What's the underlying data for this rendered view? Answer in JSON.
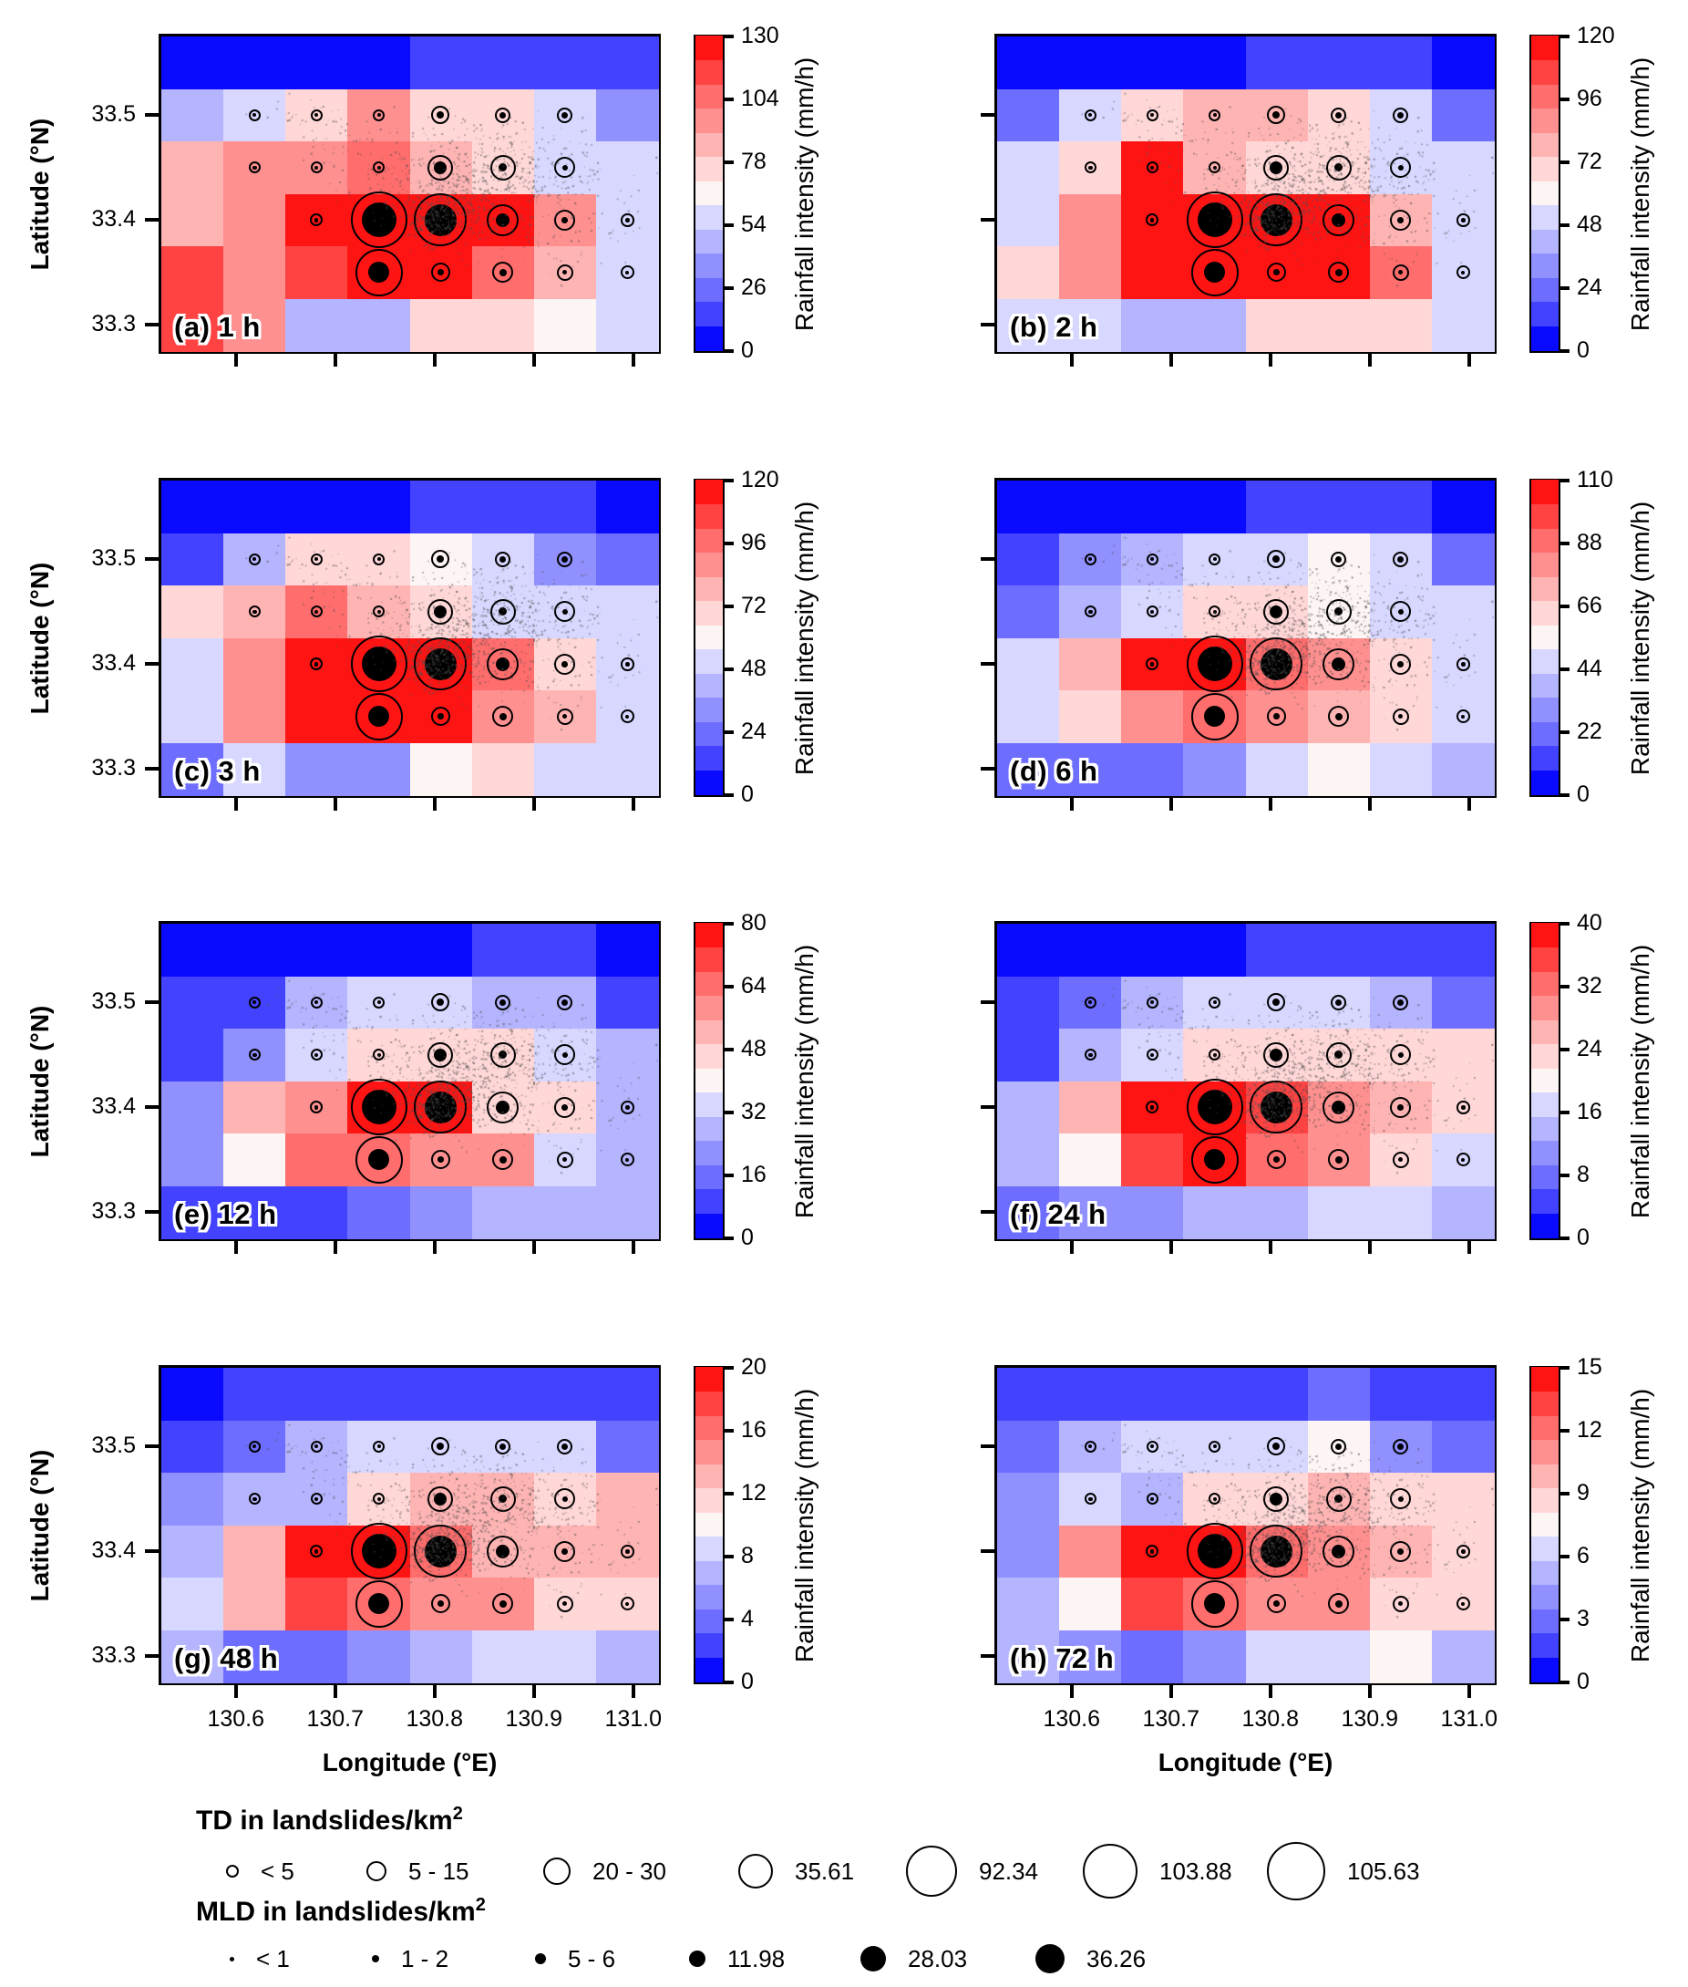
{
  "chart_data": {
    "type": "heatmap",
    "description": "Rainfall intensity heatmaps for 8 durations with landslide density bubble markers (TD open circles, MLD filled dots) and gray landslide scatter points",
    "x": {
      "label": "Longitude (°E)",
      "ticks": [
        "130.6",
        "130.7",
        "130.8",
        "130.9",
        "131.0"
      ],
      "tick_values": [
        130.6,
        130.7,
        130.8,
        130.9,
        131.0
      ],
      "range": [
        130.525,
        131.025
      ]
    },
    "y": {
      "label": "Latitude (°N)",
      "ticks": [
        "33.5",
        "33.4",
        "33.3"
      ],
      "tick_values": [
        33.5,
        33.4,
        33.3
      ],
      "range": [
        33.275,
        33.575
      ]
    },
    "colorbar_label": "Rainfall intensity (mm/h)",
    "palette": [
      "#0a0aff",
      "#4343ff",
      "#6d6dff",
      "#9090ff",
      "#b4b4ff",
      "#d7d7ff",
      "#fdf4f4",
      "#ffd7d7",
      "#ffb4b4",
      "#ff9090",
      "#ff6d6d",
      "#ff4343",
      "#ff1414"
    ],
    "panels": [
      {
        "id": "a",
        "title": "(a) 1 h",
        "vmax": 130,
        "cb_ticks": [
          "0",
          "26",
          "54",
          "78",
          "104",
          "130"
        ],
        "grid": [
          [
            0,
            0,
            0,
            0,
            1,
            1,
            1,
            1
          ],
          [
            4,
            5,
            7,
            9,
            7,
            7,
            5,
            3
          ],
          [
            8,
            9,
            9,
            10,
            8,
            7,
            5,
            5
          ],
          [
            8,
            9,
            12,
            12,
            12,
            12,
            9,
            5
          ],
          [
            11,
            9,
            11,
            12,
            12,
            10,
            8,
            5
          ],
          [
            11,
            9,
            4,
            4,
            7,
            7,
            6,
            5
          ]
        ]
      },
      {
        "id": "b",
        "title": "(b) 2 h",
        "vmax": 120,
        "cb_ticks": [
          "0",
          "24",
          "48",
          "72",
          "96",
          "120"
        ],
        "grid": [
          [
            0,
            0,
            0,
            0,
            1,
            1,
            1,
            0
          ],
          [
            2,
            5,
            7,
            8,
            8,
            7,
            5,
            2
          ],
          [
            5,
            7,
            12,
            8,
            7,
            7,
            5,
            5
          ],
          [
            5,
            9,
            12,
            12,
            12,
            12,
            8,
            5
          ],
          [
            7,
            9,
            12,
            12,
            12,
            12,
            10,
            5
          ],
          [
            5,
            5,
            4,
            4,
            7,
            7,
            7,
            5
          ]
        ]
      },
      {
        "id": "c",
        "title": "(c) 3 h",
        "vmax": 120,
        "cb_ticks": [
          "0",
          "24",
          "48",
          "72",
          "96",
          "120"
        ],
        "grid": [
          [
            0,
            0,
            0,
            0,
            1,
            1,
            1,
            0
          ],
          [
            1,
            4,
            7,
            7,
            6,
            5,
            3,
            2
          ],
          [
            7,
            8,
            10,
            8,
            7,
            5,
            5,
            5
          ],
          [
            5,
            9,
            12,
            12,
            12,
            10,
            7,
            5
          ],
          [
            5,
            9,
            12,
            12,
            12,
            9,
            8,
            5
          ],
          [
            2,
            5,
            3,
            3,
            6,
            7,
            5,
            5
          ]
        ]
      },
      {
        "id": "d",
        "title": "(d) 6 h",
        "vmax": 110,
        "cb_ticks": [
          "0",
          "22",
          "44",
          "66",
          "88",
          "110"
        ],
        "grid": [
          [
            0,
            0,
            0,
            0,
            1,
            1,
            1,
            0
          ],
          [
            1,
            3,
            4,
            5,
            5,
            6,
            5,
            2
          ],
          [
            2,
            4,
            5,
            7,
            7,
            6,
            5,
            5
          ],
          [
            5,
            8,
            12,
            12,
            10,
            9,
            7,
            5
          ],
          [
            5,
            7,
            9,
            10,
            9,
            8,
            7,
            5
          ],
          [
            2,
            2,
            2,
            3,
            5,
            6,
            5,
            4
          ]
        ]
      },
      {
        "id": "e",
        "title": "(e) 12 h",
        "vmax": 80,
        "cb_ticks": [
          "0",
          "16",
          "32",
          "48",
          "64",
          "80"
        ],
        "grid": [
          [
            0,
            0,
            0,
            0,
            0,
            1,
            1,
            0
          ],
          [
            1,
            1,
            4,
            5,
            5,
            4,
            4,
            1
          ],
          [
            1,
            3,
            5,
            7,
            7,
            7,
            5,
            4
          ],
          [
            3,
            8,
            9,
            12,
            12,
            7,
            7,
            4
          ],
          [
            3,
            6,
            10,
            10,
            9,
            9,
            5,
            4
          ],
          [
            1,
            1,
            1,
            2,
            3,
            4,
            4,
            4
          ]
        ]
      },
      {
        "id": "f",
        "title": "(f) 24 h",
        "vmax": 40,
        "cb_ticks": [
          "0",
          "8",
          "16",
          "24",
          "32",
          "40"
        ],
        "grid": [
          [
            0,
            0,
            0,
            0,
            1,
            1,
            1,
            1
          ],
          [
            1,
            2,
            4,
            5,
            5,
            5,
            4,
            2
          ],
          [
            1,
            4,
            5,
            7,
            7,
            7,
            7,
            7
          ],
          [
            4,
            8,
            12,
            12,
            11,
            9,
            8,
            7
          ],
          [
            4,
            6,
            11,
            12,
            10,
            9,
            7,
            5
          ],
          [
            2,
            3,
            3,
            4,
            4,
            5,
            5,
            4
          ]
        ]
      },
      {
        "id": "g",
        "title": "(g) 48 h",
        "vmax": 20,
        "cb_ticks": [
          "0",
          "4",
          "8",
          "12",
          "16",
          "20"
        ],
        "grid": [
          [
            0,
            1,
            1,
            1,
            1,
            1,
            1,
            1
          ],
          [
            1,
            2,
            4,
            5,
            5,
            5,
            5,
            2
          ],
          [
            3,
            4,
            4,
            7,
            8,
            8,
            7,
            8
          ],
          [
            4,
            8,
            12,
            12,
            10,
            8,
            8,
            8
          ],
          [
            5,
            8,
            11,
            10,
            9,
            9,
            7,
            7
          ],
          [
            4,
            2,
            2,
            3,
            4,
            5,
            5,
            4
          ]
        ]
      },
      {
        "id": "h",
        "title": "(h) 72 h",
        "vmax": 15,
        "cb_ticks": [
          "0",
          "3",
          "6",
          "9",
          "12",
          "15"
        ],
        "grid": [
          [
            1,
            1,
            1,
            1,
            1,
            2,
            1,
            1
          ],
          [
            2,
            4,
            5,
            5,
            5,
            6,
            3,
            2
          ],
          [
            3,
            5,
            4,
            7,
            7,
            8,
            7,
            7
          ],
          [
            3,
            9,
            12,
            12,
            10,
            9,
            8,
            7
          ],
          [
            4,
            6,
            11,
            10,
            9,
            9,
            7,
            7
          ],
          [
            4,
            3,
            2,
            3,
            5,
            5,
            6,
            4
          ]
        ]
      }
    ],
    "markers": [
      [
        33.5,
        130.619,
        6.5,
        2
      ],
      [
        33.5,
        130.681,
        6.5,
        2
      ],
      [
        33.5,
        130.744,
        6.5,
        2
      ],
      [
        33.5,
        130.806,
        10,
        4
      ],
      [
        33.5,
        130.869,
        8.5,
        3.5
      ],
      [
        33.5,
        130.931,
        8.5,
        3.5
      ],
      [
        33.45,
        130.619,
        6.5,
        2.2
      ],
      [
        33.45,
        130.681,
        6.5,
        2.2
      ],
      [
        33.45,
        130.744,
        6.5,
        2.2
      ],
      [
        33.45,
        130.806,
        14,
        7
      ],
      [
        33.45,
        130.869,
        14,
        4.5
      ],
      [
        33.45,
        130.931,
        11.5,
        3
      ],
      [
        33.4,
        130.681,
        7,
        2.3
      ],
      [
        33.4,
        130.744,
        31,
        19
      ],
      [
        33.4,
        130.806,
        29,
        17.5
      ],
      [
        33.4,
        130.869,
        17.5,
        7.5
      ],
      [
        33.4,
        130.931,
        11.5,
        3.3
      ],
      [
        33.4,
        130.994,
        7.3,
        2.3
      ],
      [
        33.35,
        130.744,
        26,
        11.5
      ],
      [
        33.35,
        130.806,
        10.5,
        3.3
      ],
      [
        33.35,
        130.869,
        11.5,
        4
      ],
      [
        33.35,
        130.931,
        9,
        2.7
      ],
      [
        33.35,
        130.994,
        7.5,
        2
      ]
    ],
    "scatter": {
      "seed": 7,
      "color": "rgba(80,80,80,0.6)",
      "clusters": [
        [
          130.84,
          33.425,
          0.045,
          0.022,
          420
        ],
        [
          130.805,
          33.405,
          0.022,
          0.013,
          330
        ],
        [
          130.87,
          33.46,
          0.04,
          0.02,
          230
        ],
        [
          130.73,
          33.465,
          0.035,
          0.022,
          90
        ],
        [
          130.93,
          33.41,
          0.045,
          0.028,
          130
        ],
        [
          130.66,
          33.5,
          0.03,
          0.01,
          20
        ]
      ]
    },
    "legend": {
      "td_title": "TD in landslides/km",
      "td_sup": "2",
      "td_items": [
        {
          "label": "< 5",
          "r": 7
        },
        {
          "label": "5 - 15",
          "r": 11
        },
        {
          "label": "20 - 30",
          "r": 15
        },
        {
          "label": "35.61",
          "r": 19
        },
        {
          "label": "92.34",
          "r": 28
        },
        {
          "label": "103.88",
          "r": 30
        },
        {
          "label": "105.63",
          "r": 32
        }
      ],
      "mld_title": "MLD in landslides/km",
      "mld_sup": "2",
      "mld_items": [
        {
          "label": "< 1",
          "r": 2.5
        },
        {
          "label": "1 - 2",
          "r": 4
        },
        {
          "label": "5 - 6",
          "r": 6
        },
        {
          "label": "11.98",
          "r": 9
        },
        {
          "label": "28.03",
          "r": 14
        },
        {
          "label": "36.26",
          "r": 16
        }
      ]
    }
  }
}
